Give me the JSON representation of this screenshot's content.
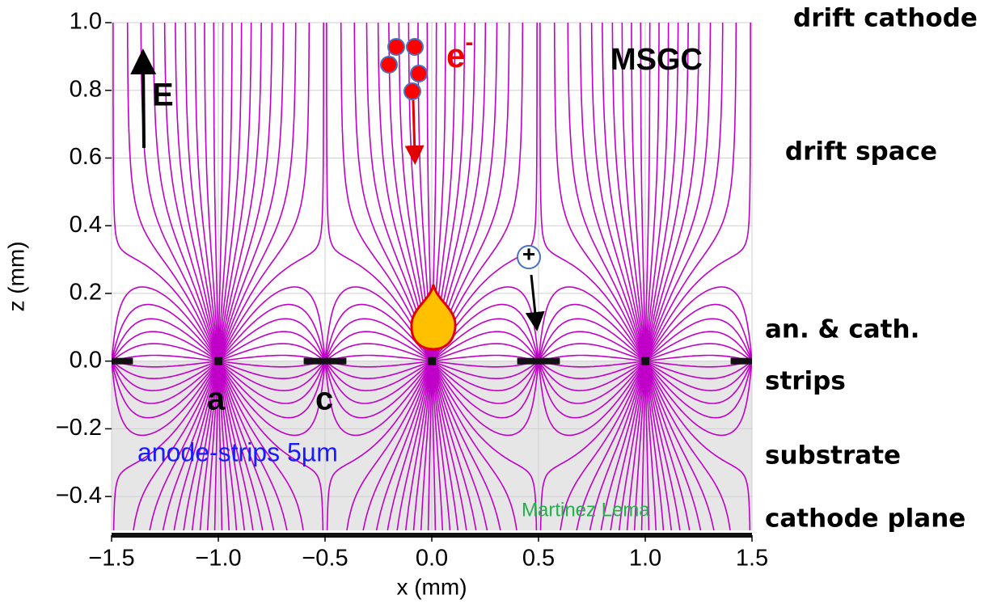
{
  "chart_data": {
    "type": "field",
    "xlabel": "x (mm)",
    "ylabel": "z (mm)",
    "xlim": [
      -1.5,
      1.5
    ],
    "ylim": [
      -0.5,
      1.0
    ],
    "xticks": [
      {
        "value": -1.5,
        "label": "−1.5"
      },
      {
        "value": -1.0,
        "label": "−1.0"
      },
      {
        "value": -0.5,
        "label": "−0.5"
      },
      {
        "value": 0,
        "label": "0.0"
      },
      0.5,
      {
        "value": 1.0,
        "label": "1.0"
      },
      1.5
    ],
    "yticks": [
      {
        "value": 1.0,
        "label": "1.0"
      },
      0.8,
      0.6,
      0.4,
      0.2,
      {
        "value": 0,
        "label": "0.0"
      },
      {
        "value": -0.2,
        "label": "−0.2"
      },
      {
        "value": -0.4,
        "label": "−0.4"
      }
    ],
    "grid": true,
    "line_color": "#c000c8",
    "anodes": [
      -1,
      0,
      1
    ],
    "cathode_strips": [
      [
        -1.6,
        -1.4
      ],
      [
        -0.6,
        -0.4
      ],
      [
        0.4,
        0.6
      ],
      [
        1.4,
        1.6
      ]
    ],
    "annotations": {
      "field": "E",
      "electron": "e",
      "electron_sup": "-",
      "detector": "MSGC",
      "anode": "a",
      "cathode": "c",
      "strip_width": "anode-strips 5µm",
      "author": "Martinez Lema",
      "ion": "+"
    },
    "side_labels": [
      "drift cathode",
      "drift space",
      "an. & cath.",
      "strips",
      "substrate",
      "cathode plane"
    ]
  }
}
